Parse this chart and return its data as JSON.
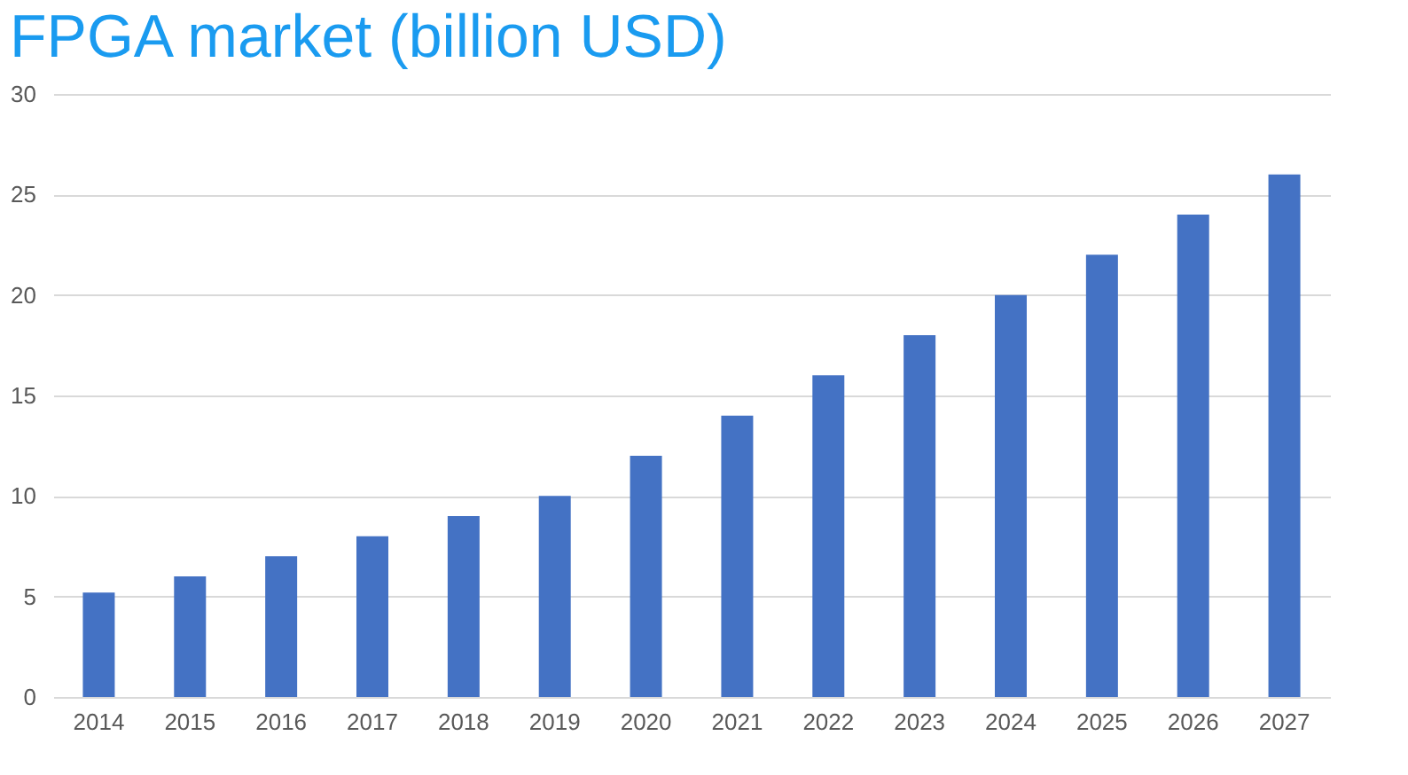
{
  "chart_data": {
    "type": "bar",
    "title": "FPGA market (billion USD)",
    "categories": [
      "2014",
      "2015",
      "2016",
      "2017",
      "2018",
      "2019",
      "2020",
      "2021",
      "2022",
      "2023",
      "2024",
      "2025",
      "2026",
      "2027"
    ],
    "values": [
      5.2,
      6,
      7,
      8,
      9,
      10,
      12,
      14,
      16,
      18,
      20,
      22,
      24,
      26
    ],
    "color": "#4472c4",
    "ylim": [
      0,
      30
    ],
    "yticks": [
      0,
      5,
      10,
      15,
      20,
      25,
      30
    ],
    "grid": "y"
  }
}
